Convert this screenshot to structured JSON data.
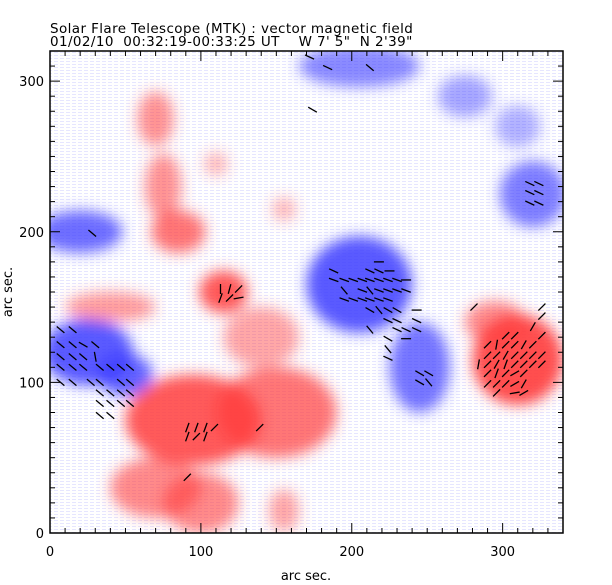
{
  "chart_data": {
    "type": "heatmap",
    "title": "Solar Flare Telescope (MTK) : vector magnetic field",
    "subtitle": {
      "date": "01/02/10",
      "time": "00:32:19-00:33:25 UT",
      "lon": "W 7' 5\"",
      "lat": "N 2'39\""
    },
    "xlabel": "arc sec.",
    "ylabel": "arc sec.",
    "xlim": [
      0,
      340
    ],
    "ylim": [
      0,
      320
    ],
    "xticks": [
      0,
      100,
      200,
      300
    ],
    "yticks": [
      0,
      100,
      200,
      300
    ],
    "minor_tick_step": 10,
    "colors": {
      "positive": "#ff3c3c",
      "negative": "#3c3cff",
      "arrow": "#000000"
    },
    "regions": [
      {
        "polarity": "negative",
        "x": 20,
        "y": 200,
        "rx": 28,
        "ry": 14,
        "strength": 0.75
      },
      {
        "polarity": "negative",
        "x": 25,
        "y": 120,
        "rx": 30,
        "ry": 22,
        "strength": 0.85
      },
      {
        "polarity": "negative",
        "x": 50,
        "y": 105,
        "rx": 18,
        "ry": 14,
        "strength": 0.8
      },
      {
        "polarity": "negative",
        "x": 205,
        "y": 165,
        "rx": 35,
        "ry": 32,
        "strength": 0.85
      },
      {
        "polarity": "negative",
        "x": 245,
        "y": 110,
        "rx": 20,
        "ry": 30,
        "strength": 0.7
      },
      {
        "polarity": "negative",
        "x": 205,
        "y": 310,
        "rx": 40,
        "ry": 14,
        "strength": 0.6
      },
      {
        "polarity": "negative",
        "x": 320,
        "y": 225,
        "rx": 22,
        "ry": 22,
        "strength": 0.65
      },
      {
        "polarity": "negative",
        "x": 275,
        "y": 290,
        "rx": 18,
        "ry": 14,
        "strength": 0.45
      },
      {
        "polarity": "negative",
        "x": 310,
        "y": 270,
        "rx": 15,
        "ry": 14,
        "strength": 0.4
      },
      {
        "polarity": "positive",
        "x": 70,
        "y": 275,
        "rx": 12,
        "ry": 18,
        "strength": 0.55
      },
      {
        "polarity": "positive",
        "x": 75,
        "y": 230,
        "rx": 12,
        "ry": 22,
        "strength": 0.55
      },
      {
        "polarity": "positive",
        "x": 85,
        "y": 200,
        "rx": 18,
        "ry": 14,
        "strength": 0.7
      },
      {
        "polarity": "positive",
        "x": 115,
        "y": 160,
        "rx": 16,
        "ry": 14,
        "strength": 0.85
      },
      {
        "polarity": "positive",
        "x": 40,
        "y": 150,
        "rx": 30,
        "ry": 10,
        "strength": 0.5
      },
      {
        "polarity": "positive",
        "x": 95,
        "y": 75,
        "rx": 45,
        "ry": 30,
        "strength": 0.85
      },
      {
        "polarity": "positive",
        "x": 150,
        "y": 80,
        "rx": 40,
        "ry": 30,
        "strength": 0.7
      },
      {
        "polarity": "positive",
        "x": 70,
        "y": 30,
        "rx": 30,
        "ry": 20,
        "strength": 0.6
      },
      {
        "polarity": "positive",
        "x": 140,
        "y": 130,
        "rx": 25,
        "ry": 20,
        "strength": 0.45
      },
      {
        "polarity": "positive",
        "x": 310,
        "y": 115,
        "rx": 30,
        "ry": 30,
        "strength": 0.9
      },
      {
        "polarity": "positive",
        "x": 295,
        "y": 140,
        "rx": 20,
        "ry": 14,
        "strength": 0.6
      },
      {
        "polarity": "positive",
        "x": 100,
        "y": 20,
        "rx": 25,
        "ry": 20,
        "strength": 0.6
      },
      {
        "polarity": "positive",
        "x": 155,
        "y": 15,
        "rx": 10,
        "ry": 14,
        "strength": 0.45
      },
      {
        "polarity": "positive",
        "x": 110,
        "y": 245,
        "rx": 8,
        "ry": 8,
        "strength": 0.35
      },
      {
        "polarity": "positive",
        "x": 155,
        "y": 215,
        "rx": 8,
        "ry": 8,
        "strength": 0.35
      }
    ],
    "vectors": [
      {
        "x": 7,
        "y": 135,
        "angle": -40
      },
      {
        "x": 15,
        "y": 135,
        "angle": -40
      },
      {
        "x": 7,
        "y": 125,
        "angle": -40
      },
      {
        "x": 15,
        "y": 125,
        "angle": -40
      },
      {
        "x": 22,
        "y": 125,
        "angle": -30
      },
      {
        "x": 30,
        "y": 125,
        "angle": -40
      },
      {
        "x": 7,
        "y": 117,
        "angle": -40
      },
      {
        "x": 15,
        "y": 117,
        "angle": 140
      },
      {
        "x": 22,
        "y": 117,
        "angle": 140
      },
      {
        "x": 30,
        "y": 117,
        "angle": 100
      },
      {
        "x": 7,
        "y": 110,
        "angle": -40
      },
      {
        "x": 15,
        "y": 110,
        "angle": -40
      },
      {
        "x": 22,
        "y": 110,
        "angle": -40
      },
      {
        "x": 33,
        "y": 110,
        "angle": -40
      },
      {
        "x": 40,
        "y": 110,
        "angle": -40
      },
      {
        "x": 47,
        "y": 110,
        "angle": -40
      },
      {
        "x": 53,
        "y": 110,
        "angle": 140
      },
      {
        "x": 7,
        "y": 100,
        "angle": -40
      },
      {
        "x": 15,
        "y": 100,
        "angle": 140
      },
      {
        "x": 27,
        "y": 100,
        "angle": -40
      },
      {
        "x": 33,
        "y": 100,
        "angle": -40
      },
      {
        "x": 47,
        "y": 100,
        "angle": 140
      },
      {
        "x": 53,
        "y": 100,
        "angle": -40
      },
      {
        "x": 33,
        "y": 93,
        "angle": -40
      },
      {
        "x": 40,
        "y": 93,
        "angle": -40
      },
      {
        "x": 47,
        "y": 93,
        "angle": 140
      },
      {
        "x": 53,
        "y": 93,
        "angle": -40
      },
      {
        "x": 33,
        "y": 86,
        "angle": -40
      },
      {
        "x": 40,
        "y": 86,
        "angle": 140
      },
      {
        "x": 47,
        "y": 86,
        "angle": -40
      },
      {
        "x": 53,
        "y": 86,
        "angle": -40
      },
      {
        "x": 33,
        "y": 78,
        "angle": -40
      },
      {
        "x": 40,
        "y": 78,
        "angle": -40
      },
      {
        "x": 28,
        "y": 199,
        "angle": -40
      },
      {
        "x": 218,
        "y": 180,
        "angle": 0
      },
      {
        "x": 188,
        "y": 174,
        "angle": -25
      },
      {
        "x": 212,
        "y": 174,
        "angle": -25
      },
      {
        "x": 218,
        "y": 174,
        "angle": -25
      },
      {
        "x": 225,
        "y": 174,
        "angle": 0
      },
      {
        "x": 188,
        "y": 168,
        "angle": -20
      },
      {
        "x": 195,
        "y": 168,
        "angle": -20
      },
      {
        "x": 201,
        "y": 168,
        "angle": -20
      },
      {
        "x": 207,
        "y": 168,
        "angle": -20
      },
      {
        "x": 212,
        "y": 168,
        "angle": -20
      },
      {
        "x": 218,
        "y": 168,
        "angle": -20
      },
      {
        "x": 224,
        "y": 168,
        "angle": -20
      },
      {
        "x": 230,
        "y": 168,
        "angle": -20
      },
      {
        "x": 236,
        "y": 168,
        "angle": 0
      },
      {
        "x": 195,
        "y": 161,
        "angle": -50
      },
      {
        "x": 207,
        "y": 161,
        "angle": -20
      },
      {
        "x": 212,
        "y": 161,
        "angle": -50
      },
      {
        "x": 218,
        "y": 161,
        "angle": -20
      },
      {
        "x": 224,
        "y": 161,
        "angle": -20
      },
      {
        "x": 230,
        "y": 161,
        "angle": -20
      },
      {
        "x": 236,
        "y": 161,
        "angle": -20
      },
      {
        "x": 195,
        "y": 155,
        "angle": -20
      },
      {
        "x": 201,
        "y": 155,
        "angle": -20
      },
      {
        "x": 207,
        "y": 155,
        "angle": -20
      },
      {
        "x": 212,
        "y": 155,
        "angle": -20
      },
      {
        "x": 218,
        "y": 155,
        "angle": -20
      },
      {
        "x": 224,
        "y": 155,
        "angle": -20
      },
      {
        "x": 212,
        "y": 148,
        "angle": -30
      },
      {
        "x": 218,
        "y": 148,
        "angle": -50
      },
      {
        "x": 224,
        "y": 148,
        "angle": -30
      },
      {
        "x": 230,
        "y": 148,
        "angle": -30
      },
      {
        "x": 243,
        "y": 148,
        "angle": 0
      },
      {
        "x": 224,
        "y": 141,
        "angle": -25
      },
      {
        "x": 230,
        "y": 141,
        "angle": -25
      },
      {
        "x": 243,
        "y": 141,
        "angle": -25
      },
      {
        "x": 212,
        "y": 135,
        "angle": -50
      },
      {
        "x": 230,
        "y": 135,
        "angle": -25
      },
      {
        "x": 236,
        "y": 135,
        "angle": -25
      },
      {
        "x": 243,
        "y": 135,
        "angle": -25
      },
      {
        "x": 224,
        "y": 129,
        "angle": -30
      },
      {
        "x": 236,
        "y": 129,
        "angle": 0
      },
      {
        "x": 224,
        "y": 122,
        "angle": -50
      },
      {
        "x": 224,
        "y": 116,
        "angle": -25
      },
      {
        "x": 245,
        "y": 106,
        "angle": -30
      },
      {
        "x": 251,
        "y": 106,
        "angle": -30
      },
      {
        "x": 245,
        "y": 100,
        "angle": -30
      },
      {
        "x": 251,
        "y": 100,
        "angle": -50
      },
      {
        "x": 113,
        "y": 162,
        "angle": 90
      },
      {
        "x": 119,
        "y": 162,
        "angle": 75
      },
      {
        "x": 125,
        "y": 162,
        "angle": 45
      },
      {
        "x": 113,
        "y": 156,
        "angle": 70
      },
      {
        "x": 119,
        "y": 156,
        "angle": 45
      },
      {
        "x": 125,
        "y": 156,
        "angle": 10
      },
      {
        "x": 91,
        "y": 70,
        "angle": 70
      },
      {
        "x": 97,
        "y": 70,
        "angle": 70
      },
      {
        "x": 103,
        "y": 70,
        "angle": 70
      },
      {
        "x": 109,
        "y": 70,
        "angle": 45
      },
      {
        "x": 91,
        "y": 64,
        "angle": 70
      },
      {
        "x": 97,
        "y": 64,
        "angle": 45
      },
      {
        "x": 103,
        "y": 64,
        "angle": 70
      },
      {
        "x": 139,
        "y": 70,
        "angle": 45
      },
      {
        "x": 91,
        "y": 37,
        "angle": 45
      },
      {
        "x": 281,
        "y": 150,
        "angle": 45
      },
      {
        "x": 326,
        "y": 150,
        "angle": 45
      },
      {
        "x": 326,
        "y": 144,
        "angle": 45
      },
      {
        "x": 320,
        "y": 137,
        "angle": 60
      },
      {
        "x": 302,
        "y": 131,
        "angle": 45
      },
      {
        "x": 308,
        "y": 131,
        "angle": 45
      },
      {
        "x": 326,
        "y": 131,
        "angle": 45
      },
      {
        "x": 290,
        "y": 125,
        "angle": 45
      },
      {
        "x": 296,
        "y": 125,
        "angle": 80
      },
      {
        "x": 302,
        "y": 125,
        "angle": 45
      },
      {
        "x": 308,
        "y": 125,
        "angle": 45
      },
      {
        "x": 314,
        "y": 125,
        "angle": 60
      },
      {
        "x": 320,
        "y": 125,
        "angle": 45
      },
      {
        "x": 290,
        "y": 118,
        "angle": 45
      },
      {
        "x": 296,
        "y": 118,
        "angle": 45
      },
      {
        "x": 302,
        "y": 118,
        "angle": 60
      },
      {
        "x": 308,
        "y": 118,
        "angle": 45
      },
      {
        "x": 314,
        "y": 118,
        "angle": 45
      },
      {
        "x": 320,
        "y": 118,
        "angle": 45
      },
      {
        "x": 326,
        "y": 118,
        "angle": 45
      },
      {
        "x": 284,
        "y": 112,
        "angle": 80
      },
      {
        "x": 290,
        "y": 112,
        "angle": 45
      },
      {
        "x": 296,
        "y": 112,
        "angle": 60
      },
      {
        "x": 302,
        "y": 112,
        "angle": 70
      },
      {
        "x": 308,
        "y": 112,
        "angle": 45
      },
      {
        "x": 314,
        "y": 112,
        "angle": 45
      },
      {
        "x": 320,
        "y": 112,
        "angle": 45
      },
      {
        "x": 326,
        "y": 112,
        "angle": 45
      },
      {
        "x": 290,
        "y": 106,
        "angle": 45
      },
      {
        "x": 296,
        "y": 106,
        "angle": 70
      },
      {
        "x": 302,
        "y": 106,
        "angle": 45
      },
      {
        "x": 308,
        "y": 106,
        "angle": 30
      },
      {
        "x": 314,
        "y": 106,
        "angle": 45
      },
      {
        "x": 290,
        "y": 99,
        "angle": 45
      },
      {
        "x": 296,
        "y": 99,
        "angle": 45
      },
      {
        "x": 302,
        "y": 99,
        "angle": 45
      },
      {
        "x": 308,
        "y": 99,
        "angle": 30
      },
      {
        "x": 314,
        "y": 99,
        "angle": 60
      },
      {
        "x": 296,
        "y": 93,
        "angle": 45
      },
      {
        "x": 308,
        "y": 93,
        "angle": 10
      },
      {
        "x": 314,
        "y": 93,
        "angle": 30
      },
      {
        "x": 318,
        "y": 232,
        "angle": -25
      },
      {
        "x": 324,
        "y": 232,
        "angle": -25
      },
      {
        "x": 318,
        "y": 226,
        "angle": -25
      },
      {
        "x": 324,
        "y": 226,
        "angle": -25
      },
      {
        "x": 318,
        "y": 219,
        "angle": -25
      },
      {
        "x": 324,
        "y": 219,
        "angle": -25
      },
      {
        "x": 172,
        "y": 316,
        "angle": -25
      },
      {
        "x": 184,
        "y": 309,
        "angle": -25
      },
      {
        "x": 212,
        "y": 309,
        "angle": -40
      },
      {
        "x": 174,
        "y": 281,
        "angle": -30
      }
    ]
  }
}
